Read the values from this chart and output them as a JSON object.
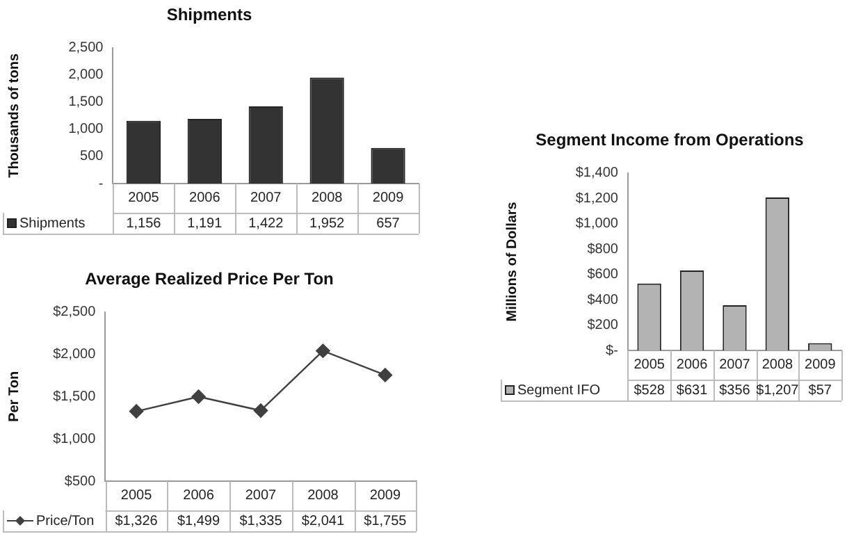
{
  "chart_data": [
    {
      "type": "bar",
      "title": "Shipments",
      "ylabel": "Thousands of tons",
      "categories": [
        "2005",
        "2006",
        "2007",
        "2008",
        "2009"
      ],
      "series": [
        {
          "name": "Shipments",
          "color": "#333333",
          "values": [
            1156,
            1191,
            1422,
            1952,
            657
          ],
          "value_labels": [
            "1,156",
            "1,191",
            "1,422",
            "1,952",
            "657"
          ]
        }
      ],
      "ylim": [
        0,
        2500
      ],
      "yticks": [
        {
          "value": 0,
          "label": "-"
        },
        {
          "value": 500,
          "label": "500"
        },
        {
          "value": 1000,
          "label": "1,000"
        },
        {
          "value": 1500,
          "label": "1,500"
        },
        {
          "value": 2000,
          "label": "2,000"
        },
        {
          "value": 2500,
          "label": "2,500"
        }
      ],
      "legend": "bottom"
    },
    {
      "type": "line",
      "title": "Average Realized Price Per Ton",
      "ylabel": "Per Ton",
      "categories": [
        "2005",
        "2006",
        "2007",
        "2008",
        "2009"
      ],
      "series": [
        {
          "name": "Price/Ton",
          "color": "#404040",
          "values": [
            1326,
            1499,
            1335,
            2041,
            1755
          ],
          "value_labels": [
            "$1,326",
            "$1,499",
            "$1,335",
            "$2,041",
            "$1,755"
          ]
        }
      ],
      "ylim": [
        500,
        2500
      ],
      "yticks": [
        {
          "value": 500,
          "label": "$500"
        },
        {
          "value": 1000,
          "label": "$1,000"
        },
        {
          "value": 1500,
          "label": "$1,500"
        },
        {
          "value": 2000,
          "label": "$2,000"
        },
        {
          "value": 2500,
          "label": "$2,500"
        }
      ],
      "marker": "diamond",
      "legend": "bottom"
    },
    {
      "type": "bar",
      "title": "Segment Income from Operations",
      "ylabel": "Millions of Dollars",
      "categories": [
        "2005",
        "2006",
        "2007",
        "2008",
        "2009"
      ],
      "series": [
        {
          "name": "Segment IFO",
          "color": "#b3b3b3",
          "values": [
            528,
            631,
            356,
            1207,
            57
          ],
          "value_labels": [
            "$528",
            "$631",
            "$356",
            "$1,207",
            "$57"
          ]
        }
      ],
      "ylim": [
        0,
        1400
      ],
      "yticks": [
        {
          "value": 0,
          "label": "$-"
        },
        {
          "value": 200,
          "label": "$200"
        },
        {
          "value": 400,
          "label": "$400"
        },
        {
          "value": 600,
          "label": "$600"
        },
        {
          "value": 800,
          "label": "$800"
        },
        {
          "value": 1000,
          "label": "$1,000"
        },
        {
          "value": 1200,
          "label": "$1,200"
        },
        {
          "value": 1400,
          "label": "$1,400"
        }
      ],
      "legend": "bottom"
    }
  ]
}
